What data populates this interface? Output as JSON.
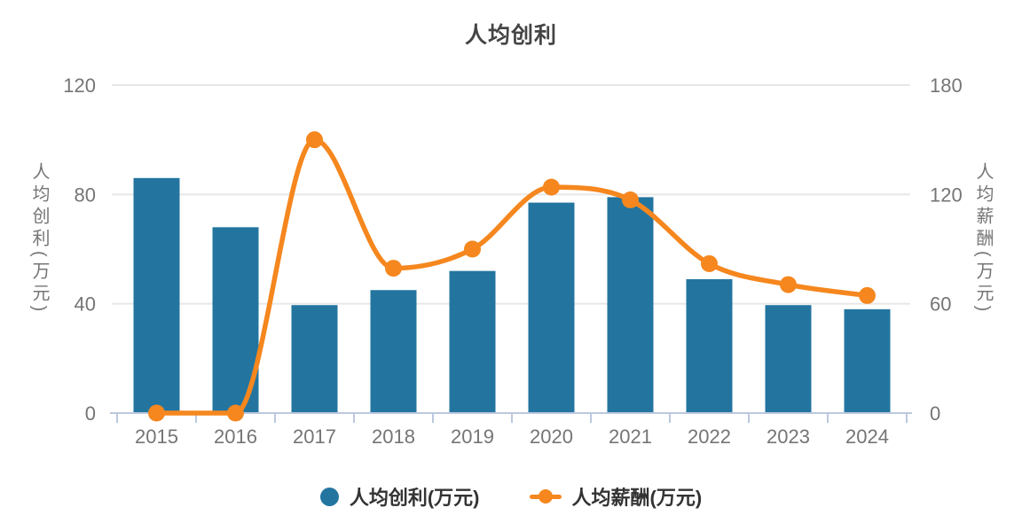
{
  "title": "人均创利",
  "colors": {
    "bar": "#2375a0",
    "line": "#f5871e",
    "title_text": "#454545",
    "tick_text": "#757575",
    "axis_line": "#bcc8de",
    "grid_line": "#e7e7e7",
    "legend_text": "#333333",
    "background": "#ffffff"
  },
  "chart_data": {
    "type": "bar+line dual-axis",
    "categories": [
      "2015",
      "2016",
      "2017",
      "2018",
      "2019",
      "2020",
      "2021",
      "2022",
      "2023",
      "2024"
    ],
    "series": [
      {
        "name": "人均创利(万元)",
        "type": "bar",
        "axis": "left",
        "values": [
          86,
          68,
          39.5,
          45,
          52,
          77,
          79,
          49,
          39.5,
          38
        ]
      },
      {
        "name": "人均薪酬(万元)",
        "type": "line",
        "axis": "right",
        "smooth": true,
        "values": [
          0,
          0,
          150,
          79.5,
          90,
          124,
          117,
          82,
          70.5,
          64.5
        ]
      }
    ],
    "y_left": {
      "label": "人均创利(万元)",
      "ticks": [
        0,
        40,
        80,
        120
      ],
      "min": 0,
      "max": 120
    },
    "y_right": {
      "label": "人均薪酬(万元)",
      "ticks": [
        0,
        60,
        120,
        180
      ],
      "min": 0,
      "max": 180
    },
    "grid": true,
    "legend_position": "bottom",
    "title": "人均创利"
  },
  "legend": {
    "items": [
      {
        "label": "人均创利(万元)",
        "marker": "circle"
      },
      {
        "label": "人均薪酬(万元)",
        "marker": "line-dot"
      }
    ]
  }
}
